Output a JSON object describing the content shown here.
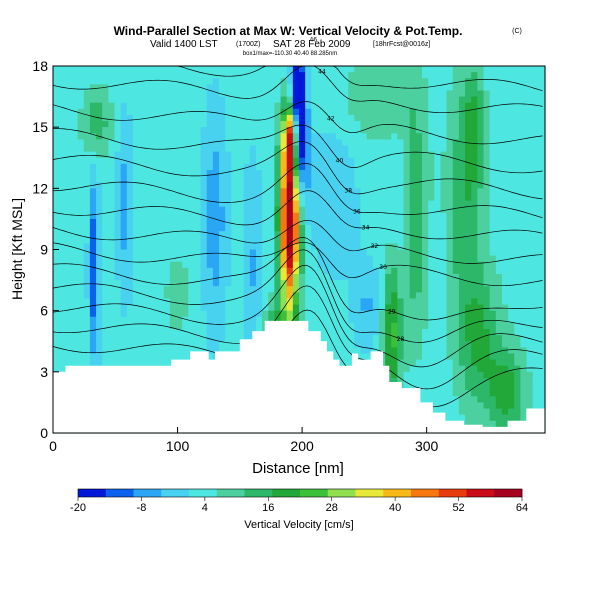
{
  "chart_data": {
    "type": "heatmap",
    "title": "Wind-Parallel Section at Max W: Vertical Velocity & Pot.Temp.",
    "title_mark": "(C)",
    "subtitle_main": "Valid 1400 LST",
    "subtitle_paren1": "(1700Z)",
    "subtitle_date": "SAT 28 Feb 2009",
    "subtitle_paren2": "[18hrFcst@0016z]",
    "subtitle_small": "box1/max=-110.30 40.40 88.285nm",
    "xlabel": "Distance [nm]",
    "ylabel": "Height [Kft MSL]",
    "x_ticks": [
      "0",
      "100",
      "200",
      "300"
    ],
    "y_ticks": [
      "0",
      "3",
      "6",
      "9",
      "12",
      "15",
      "18"
    ],
    "xlim": [
      0,
      395
    ],
    "ylim": [
      0,
      18
    ],
    "colorbar": {
      "label": "Vertical Velocity [cm/s]",
      "ticks": [
        "-20",
        "-8",
        "4",
        "16",
        "28",
        "40",
        "52",
        "64"
      ],
      "range": [
        -20,
        64
      ],
      "colors": [
        "#0018d8",
        "#0c60ee",
        "#2aa6f4",
        "#48d2f0",
        "#4ee6e0",
        "#4cd0a0",
        "#2cb868",
        "#22a838",
        "#3cc03a",
        "#90e050",
        "#e8e838",
        "#f8b818",
        "#f87810",
        "#e83c10",
        "#c80c18",
        "#a80020"
      ]
    },
    "terrain": [
      [
        0,
        3.0
      ],
      [
        10,
        3.0
      ],
      [
        10,
        3.3
      ],
      [
        95,
        3.3
      ],
      [
        95,
        3.6
      ],
      [
        110,
        3.6
      ],
      [
        110,
        4.0
      ],
      [
        125,
        4.0
      ],
      [
        125,
        3.6
      ],
      [
        130,
        3.6
      ],
      [
        130,
        4.0
      ],
      [
        150,
        4.0
      ],
      [
        150,
        4.6
      ],
      [
        160,
        4.6
      ],
      [
        160,
        5.0
      ],
      [
        170,
        5.0
      ],
      [
        170,
        5.5
      ],
      [
        205,
        5.5
      ],
      [
        205,
        5.0
      ],
      [
        215,
        5.0
      ],
      [
        215,
        4.5
      ],
      [
        220,
        4.5
      ],
      [
        220,
        4.0
      ],
      [
        225,
        4.0
      ],
      [
        225,
        3.6
      ],
      [
        230,
        3.6
      ],
      [
        230,
        3.3
      ],
      [
        240,
        3.3
      ],
      [
        240,
        3.9
      ],
      [
        245,
        3.9
      ],
      [
        245,
        3.6
      ],
      [
        255,
        3.6
      ],
      [
        255,
        4.0
      ],
      [
        265,
        4.0
      ],
      [
        265,
        3.3
      ],
      [
        270,
        3.3
      ],
      [
        270,
        2.5
      ],
      [
        280,
        2.5
      ],
      [
        280,
        2.2
      ],
      [
        295,
        2.2
      ],
      [
        295,
        1.5
      ],
      [
        305,
        1.5
      ],
      [
        305,
        1.0
      ],
      [
        315,
        1.0
      ],
      [
        315,
        0.6
      ],
      [
        330,
        0.6
      ],
      [
        330,
        0.4
      ],
      [
        345,
        0.4
      ],
      [
        345,
        0.3
      ],
      [
        365,
        0.3
      ],
      [
        365,
        0.6
      ],
      [
        380,
        0.6
      ],
      [
        380,
        1.2
      ],
      [
        395,
        1.2
      ]
    ],
    "w_features": [
      {
        "x": 190,
        "y": 10.5,
        "sx": 5.5,
        "sy": 3.2,
        "w": 66
      },
      {
        "x": 190,
        "y": 14.6,
        "sx": 3.5,
        "sy": 1.0,
        "w": 32
      },
      {
        "x": 196,
        "y": 16.3,
        "sx": 4.5,
        "sy": 2.4,
        "w": -32
      },
      {
        "x": 201,
        "y": 13.5,
        "sx": 3.5,
        "sy": 1.8,
        "w": -15
      },
      {
        "x": 33,
        "y": 8.0,
        "sx": 3.0,
        "sy": 3.2,
        "w": -18
      },
      {
        "x": 58,
        "y": 11.0,
        "sx": 5.0,
        "sy": 3.2,
        "w": -10
      },
      {
        "x": 130,
        "y": 10.5,
        "sx": 7.0,
        "sy": 4.0,
        "w": -11
      },
      {
        "x": 160,
        "y": 8.0,
        "sx": 6.0,
        "sy": 4.0,
        "w": -8
      },
      {
        "x": 225,
        "y": 11.5,
        "sx": 15.0,
        "sy": 3.0,
        "w": -6
      },
      {
        "x": 252,
        "y": 6.2,
        "sx": 8.0,
        "sy": 1.5,
        "w": -8
      },
      {
        "x": 280,
        "y": 11.0,
        "sx": 6.0,
        "sy": 2.5,
        "w": -6
      },
      {
        "x": 272,
        "y": 4.8,
        "sx": 5.0,
        "sy": 2.5,
        "w": 20
      },
      {
        "x": 290,
        "y": 10.5,
        "sx": 8.0,
        "sy": 4.0,
        "w": 14
      },
      {
        "x": 330,
        "y": 11.5,
        "sx": 10.0,
        "sy": 4.0,
        "w": 12
      },
      {
        "x": 342,
        "y": 4.5,
        "sx": 12.0,
        "sy": 2.5,
        "w": 14
      },
      {
        "x": 365,
        "y": 2.0,
        "sx": 10.0,
        "sy": 1.5,
        "w": 16
      },
      {
        "x": 338,
        "y": 15.0,
        "sx": 6.0,
        "sy": 2.0,
        "w": 12
      },
      {
        "x": 35,
        "y": 15.2,
        "sx": 8.0,
        "sy": 1.2,
        "w": 12
      },
      {
        "x": 180,
        "y": 4.8,
        "sx": 8.0,
        "sy": 1.2,
        "w": 14
      },
      {
        "x": 306,
        "y": 8.0,
        "sx": 5.0,
        "sy": 2.0,
        "w": -4
      },
      {
        "x": 260,
        "y": 16.5,
        "sx": 20.0,
        "sy": 1.5,
        "w": 8
      },
      {
        "x": 100,
        "y": 6.8,
        "sx": 6.0,
        "sy": 1.2,
        "w": 8
      }
    ],
    "isentropes": [
      {
        "base": 3.6,
        "label": ""
      },
      {
        "base": 4.5,
        "label": ""
      },
      {
        "base": 5.4,
        "label": ""
      },
      {
        "base": 6.3,
        "label": "28"
      },
      {
        "base": 7.2,
        "label": "29"
      },
      {
        "base": 8.2,
        "label": "30"
      },
      {
        "base": 9.2,
        "label": "32"
      },
      {
        "base": 10.3,
        "label": "34"
      },
      {
        "base": 11.4,
        "label": "36"
      },
      {
        "base": 12.6,
        "label": "38"
      },
      {
        "base": 13.8,
        "label": "40"
      },
      {
        "base": 15.1,
        "label": "42"
      },
      {
        "base": 16.5,
        "label": "44"
      },
      {
        "base": 17.6,
        "label": "46"
      }
    ],
    "contour_labels": [
      "48",
      "46",
      "44",
      "40",
      "40",
      "42",
      "42",
      "40",
      "46",
      "48",
      "44",
      "42",
      "40",
      "38",
      "36",
      "34",
      "32",
      "30",
      "32",
      "30",
      "28",
      "26"
    ]
  }
}
